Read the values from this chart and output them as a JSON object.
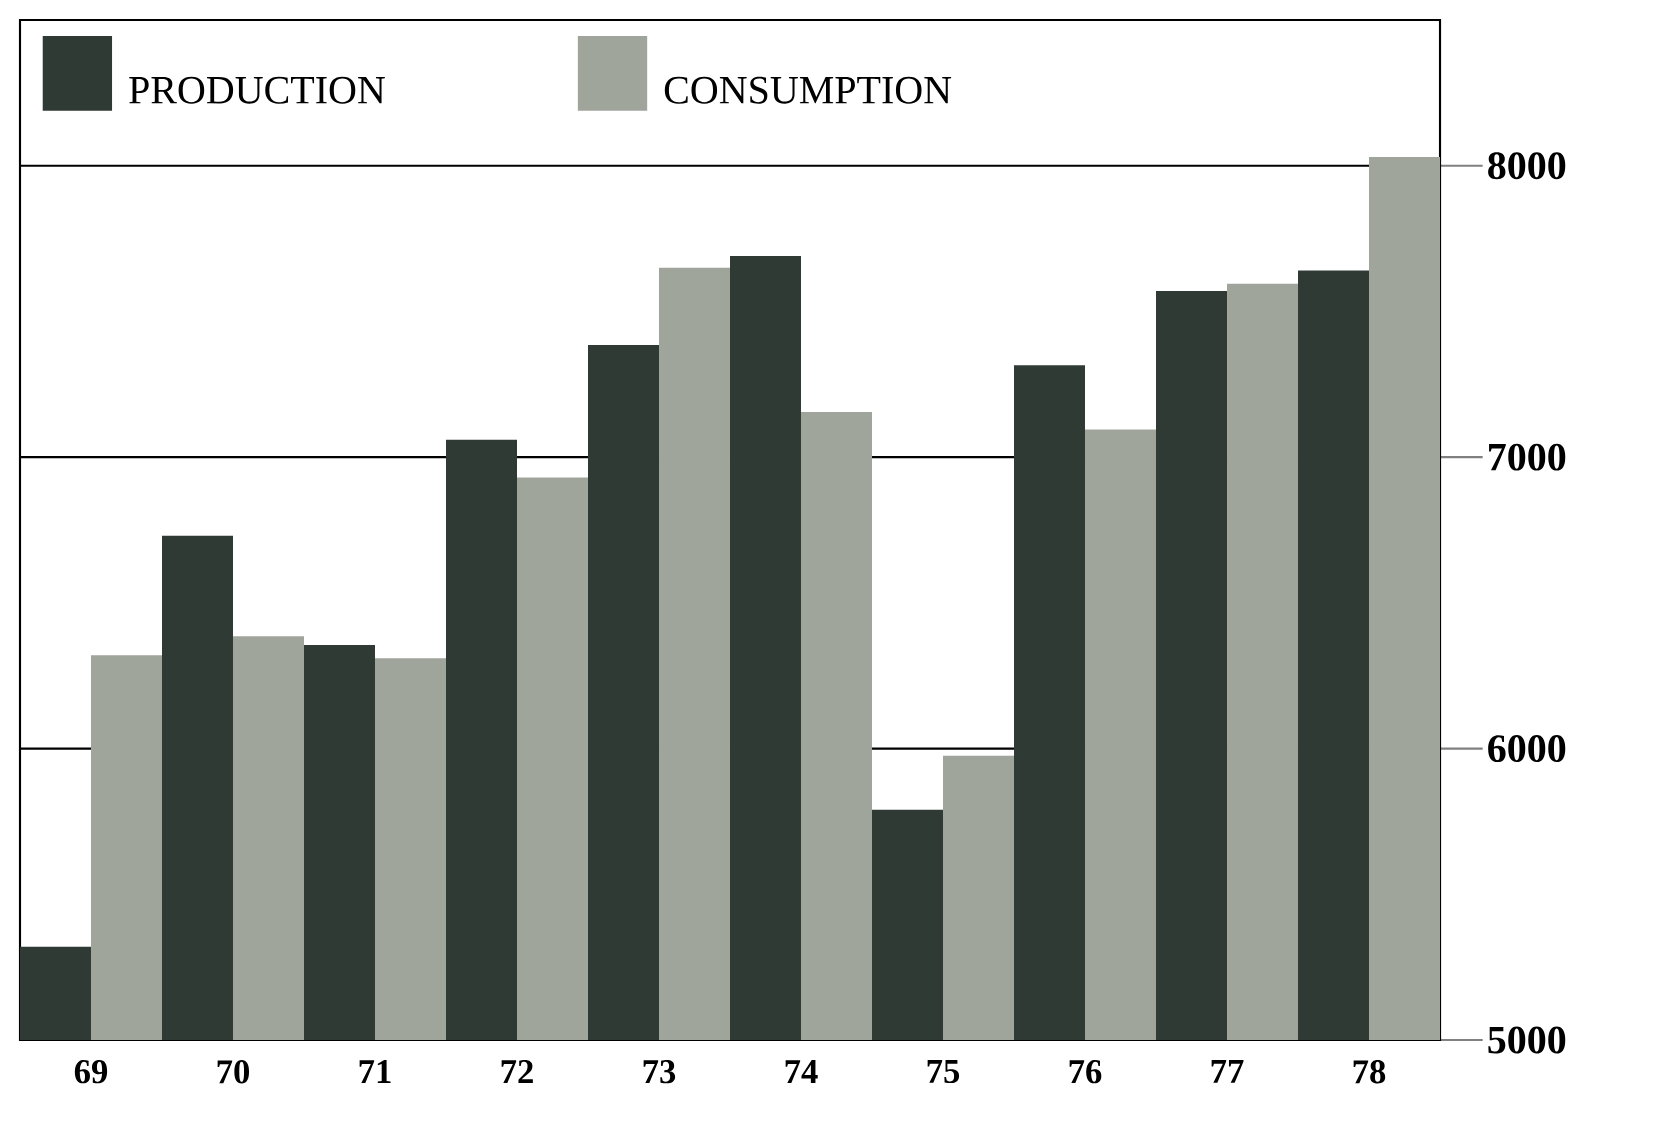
{
  "chart_data": {
    "type": "bar",
    "categories": [
      "69",
      "70",
      "71",
      "72",
      "73",
      "74",
      "75",
      "76",
      "77",
      "78"
    ],
    "series": [
      {
        "name": "PRODUCTION",
        "color": "#2e3a33",
        "values": [
          5320,
          6730,
          6355,
          7060,
          7385,
          7690,
          5790,
          7315,
          7570,
          7640
        ]
      },
      {
        "name": "CONSUMPTION",
        "color": "#a0a59c",
        "values": [
          6320,
          6385,
          6310,
          6930,
          7650,
          7155,
          5975,
          7095,
          7595,
          8030
        ]
      }
    ],
    "ylim": [
      5000,
      8500
    ],
    "yticks": [
      5000,
      6000,
      7000,
      8000
    ],
    "grid": "y",
    "legend": "top left"
  }
}
